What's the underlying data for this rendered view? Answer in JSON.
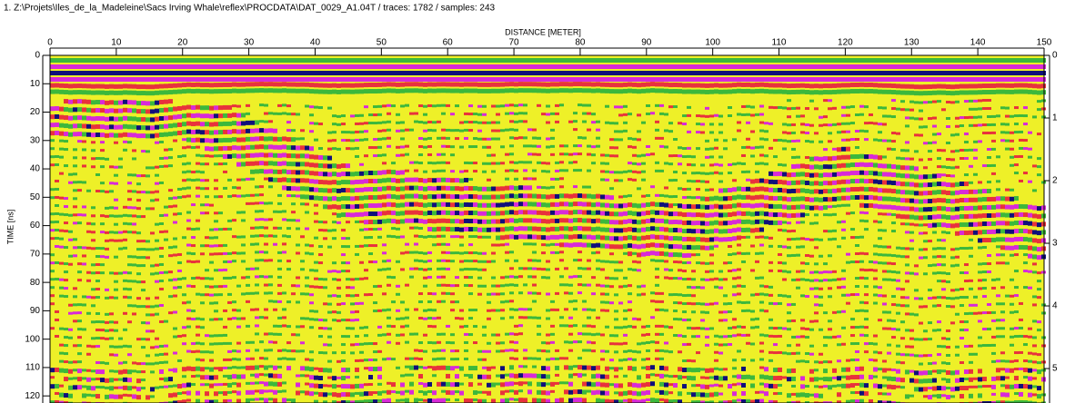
{
  "chart_data": {
    "type": "radargram",
    "title": "1. Z:\\Projets\\Iles_de_la_Madeleine\\Sacs Irving Whale\\reflex\\PROCDATA\\DAT_0029_A1.04T / traces: 1782 / samples: 243",
    "x_label": "DISTANCE [METER]",
    "y_label": "TIME [ns]",
    "xlim": [
      0,
      150
    ],
    "xticks": [
      0,
      10,
      20,
      30,
      40,
      50,
      60,
      70,
      80,
      90,
      100,
      110,
      120,
      130,
      140,
      150
    ],
    "ylim": [
      0,
      122.5
    ],
    "yticks": [
      0,
      10,
      20,
      30,
      40,
      50,
      60,
      70,
      80,
      90,
      100,
      110,
      120
    ],
    "y2lim": [
      0,
      5.55
    ],
    "y2ticks": [
      0,
      1,
      2,
      3,
      4,
      5
    ]
  }
}
